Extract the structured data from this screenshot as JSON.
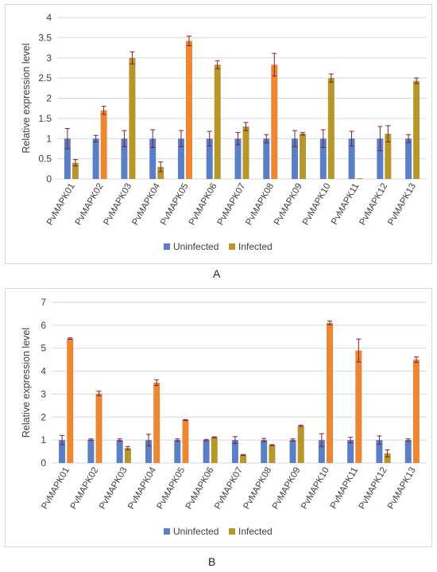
{
  "colors": {
    "uninfected": "#5b7fc7",
    "infected": "#b7962a",
    "infected_highlight": "#ee8734",
    "error_bar": "#7a1f3d",
    "grid": "#d9d9d9",
    "axis_text": "#404040"
  },
  "panel_labels": {
    "a": "A",
    "b": "B"
  },
  "chart_data": [
    {
      "type": "bar",
      "panel": "A",
      "ylabel": "Relative expression level",
      "ylim": [
        0,
        4
      ],
      "yticks": [
        0,
        0.5,
        1,
        1.5,
        2,
        2.5,
        3,
        3.5,
        4
      ],
      "ytick_labels": [
        "0",
        "0.5",
        "1",
        "1.5",
        "2",
        "2.5",
        "3",
        "3.5",
        "4"
      ],
      "grid": true,
      "legend_position": "bottom",
      "categories": [
        "PvMAPK01",
        "PvMAPK02",
        "PvMAPK03",
        "PvMAPK04",
        "PvMAPK05",
        "PvMAPK06",
        "PvMAPK07",
        "PvMAPK08",
        "PvMAPK09",
        "PvMAPK10",
        "PvMAPK11",
        "PvMAPK12",
        "PvMAPK13"
      ],
      "series": [
        {
          "name": "Uninfected",
          "values": [
            1,
            1,
            1,
            1,
            1,
            1,
            1,
            1,
            1,
            1,
            1,
            1,
            1
          ],
          "errors": [
            0.25,
            0.08,
            0.2,
            0.22,
            0.2,
            0.18,
            0.15,
            0.1,
            0.2,
            0.22,
            0.18,
            0.3,
            0.1
          ]
        },
        {
          "name": "Infected",
          "values": [
            0.4,
            1.7,
            3.0,
            0.3,
            3.42,
            2.83,
            1.3,
            2.83,
            1.12,
            2.5,
            0.02,
            1.12,
            2.43
          ],
          "errors": [
            0.08,
            0.1,
            0.15,
            0.12,
            0.12,
            0.1,
            0.1,
            0.28,
            0.03,
            0.1,
            0.0,
            0.2,
            0.07
          ]
        }
      ]
    },
    {
      "type": "bar",
      "panel": "B",
      "ylabel": "Relative expression level",
      "ylim": [
        0,
        7
      ],
      "yticks": [
        0,
        1,
        2,
        3,
        4,
        5,
        6,
        7
      ],
      "ytick_labels": [
        "0",
        "1",
        "2",
        "3",
        "4",
        "5",
        "6",
        "7"
      ],
      "grid": true,
      "legend_position": "bottom",
      "categories": [
        "PvMAPK01",
        "PvMAPK02",
        "PvMAPK03",
        "PvMAPK04",
        "PvMAPK05",
        "PvMAPK06",
        "PvMAPK07",
        "PvMAPK08",
        "PvMAPK09",
        "PvMAPK10",
        "PvMAPK11",
        "PvMAPK12",
        "PvMAPK13"
      ],
      "series": [
        {
          "name": "Uninfected",
          "values": [
            1,
            1.02,
            1,
            1,
            1,
            1,
            1,
            1,
            1,
            1,
            1,
            1,
            1
          ],
          "errors": [
            0.2,
            0.03,
            0.05,
            0.25,
            0.05,
            0.03,
            0.15,
            0.07,
            0.05,
            0.28,
            0.12,
            0.18,
            0.05
          ]
        },
        {
          "name": "Infected",
          "values": [
            5.42,
            3.03,
            0.65,
            3.5,
            1.87,
            1.12,
            0.35,
            0.78,
            1.62,
            6.1,
            4.9,
            0.42,
            4.5
          ],
          "errors": [
            0.03,
            0.1,
            0.07,
            0.12,
            0.02,
            0.02,
            0.02,
            0.02,
            0.03,
            0.08,
            0.5,
            0.15,
            0.12
          ]
        }
      ]
    }
  ]
}
